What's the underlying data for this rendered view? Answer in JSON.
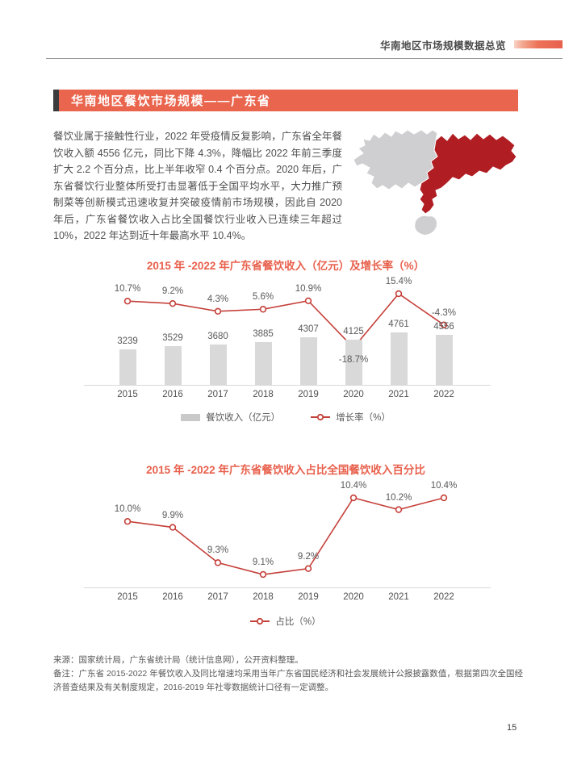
{
  "header": {
    "title": "华南地区市场规模数据总览"
  },
  "section": {
    "title": "华南地区餐饮市场规模——广东省"
  },
  "intro": {
    "text": "餐饮业属于接触性行业，2022 年受疫情反复影响，广东省全年餐饮收入额 4556 亿元，同比下降 4.3%，降幅比 2022 年前三季度扩大 2.2 个百分点，比上半年收窄 0.4 个百分点。2020 年后，广东省餐饮行业整体所受打击显著低于全国平均水平，大力推广预制菜等创新模式迅速收复并突破疫情前市场规模，因此自 2020 年后，广东省餐饮收入占比全国餐饮行业收入已连续三年超过 10%，2022 年达到近十年最高水平 10.4%。"
  },
  "map": {
    "highlight_region": "广东省",
    "highlight_color": "#B01E24",
    "base_color": "#CFCFD1"
  },
  "colors": {
    "accent": "#E8604C",
    "line": "#C5403A",
    "bar": "#D9D9D9",
    "text": "#595959"
  },
  "chart_data": [
    {
      "type": "bar",
      "title": "2015 年 -2022 年广东省餐饮收入（亿元）及增长率（%）",
      "categories": [
        "2015",
        "2016",
        "2017",
        "2018",
        "2019",
        "2020",
        "2021",
        "2022"
      ],
      "series": [
        {
          "name": "餐饮收入（亿元）",
          "type": "bar",
          "values": [
            3239,
            3529,
            3680,
            3885,
            4307,
            4125,
            4761,
            4556
          ]
        },
        {
          "name": "增长率（%）",
          "type": "line",
          "values": [
            10.7,
            9.2,
            4.3,
            5.6,
            10.9,
            -18.7,
            15.4,
            -4.3
          ],
          "labels": [
            "10.7%",
            "9.2%",
            "4.3%",
            "5.6%",
            "10.9%",
            "-18.7%",
            "15.4%",
            "-4.3%"
          ]
        }
      ],
      "xlabel": "",
      "ylabel": "",
      "grid": false,
      "legend_position": "bottom"
    },
    {
      "type": "line",
      "title": "2015 年 -2022 年广东省餐饮收入占比全国餐饮收入百分比",
      "categories": [
        "2015",
        "2016",
        "2017",
        "2018",
        "2019",
        "2020",
        "2021",
        "2022"
      ],
      "series": [
        {
          "name": "占比（%）",
          "type": "line",
          "values": [
            10.0,
            9.9,
            9.3,
            9.1,
            9.2,
            10.4,
            10.2,
            10.4
          ],
          "labels": [
            "10.0%",
            "9.9%",
            "9.3%",
            "9.1%",
            "9.2%",
            "10.4%",
            "10.2%",
            "10.4%"
          ]
        }
      ],
      "xlabel": "",
      "ylabel": "",
      "grid": false,
      "legend_position": "bottom"
    }
  ],
  "footer": {
    "source": "来源：国家统计局，广东省统计局（统计信息网），公开资料整理。",
    "remark": "备注：广东省 2015-2022 年餐饮收入及同比增速均采用当年广东省国民经济和社会发展统计公报披露数值，根据第四次全国经济普查结果及有关制度规定，2016-2019 年社零数据统计口径有一定调整。"
  },
  "page": {
    "number": "15"
  }
}
